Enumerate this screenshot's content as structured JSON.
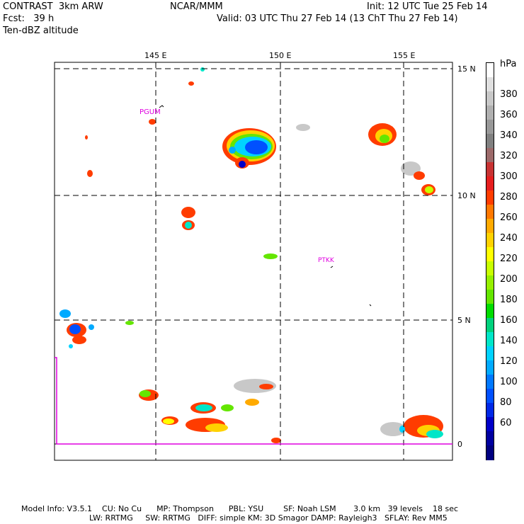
{
  "header": {
    "model": "CONTRAST  3km ARW",
    "forecast": "Fcst:   39 h",
    "field": "Ten-dBZ altitude",
    "center": "NCAR/MMM",
    "init": "Init: 12 UTC Tue 25 Feb 14",
    "valid": "Valid: 03 UTC Thu 27 Feb 14 (13 ChT Thu 27 Feb 14)"
  },
  "map": {
    "lon_labels": [
      "145 E",
      "150 E",
      "155 E"
    ],
    "lat_labels": [
      "15 N",
      "10 N",
      "5 N",
      "0"
    ],
    "stations": [
      "PGUM",
      "PTKK"
    ],
    "grid_lines": "dashed"
  },
  "colorbar": {
    "unit": "hPa",
    "labels": [
      "380",
      "360",
      "340",
      "320",
      "300",
      "280",
      "260",
      "240",
      "220",
      "200",
      "180",
      "160",
      "140",
      "120",
      "100",
      "80",
      "60"
    ],
    "colors": [
      "#ffffff",
      "#e0e0e0",
      "#c8c8c8",
      "#b0b0b0",
      "#989898",
      "#808080",
      "#9c6a6a",
      "#c83232",
      "#e61e1e",
      "#ff3c00",
      "#ff7800",
      "#ffaa00",
      "#ffd200",
      "#ffff00",
      "#c8ff00",
      "#96f000",
      "#64e600",
      "#00dc00",
      "#00d27d",
      "#00e6c8",
      "#00d2ff",
      "#00aaff",
      "#0078ff",
      "#0050ff",
      "#0028e6",
      "#0000c8",
      "#0000a0",
      "#000080"
    ]
  },
  "footer": {
    "line1": "Model Info: V3.5.1    CU: No Cu      MP: Thompson      PBL: YSU        SF: Noah LSM       3.0 km   39 levels    18 sec",
    "line2": "LW: RRTMG     SW: RRTMG   DIFF: simple KM: 3D Smagor DAMP: Rayleigh3   SFLAY: Rev MM5"
  }
}
